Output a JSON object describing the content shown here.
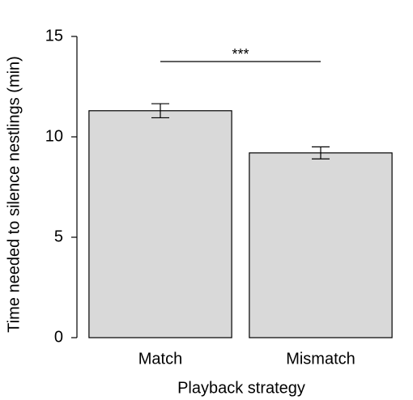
{
  "chart_data": {
    "type": "bar",
    "x_label": "Playback strategy",
    "y_label": "Time needed to silence nestlings (min)",
    "categories": [
      "Match",
      "Mismatch"
    ],
    "values": [
      11.3,
      9.2
    ],
    "errors": [
      0.35,
      0.3
    ],
    "color": "#d9d9d9",
    "annotation": "***",
    "ylim": [
      0,
      15
    ],
    "yticks": [
      0,
      5,
      10,
      15
    ],
    "grid": false
  }
}
